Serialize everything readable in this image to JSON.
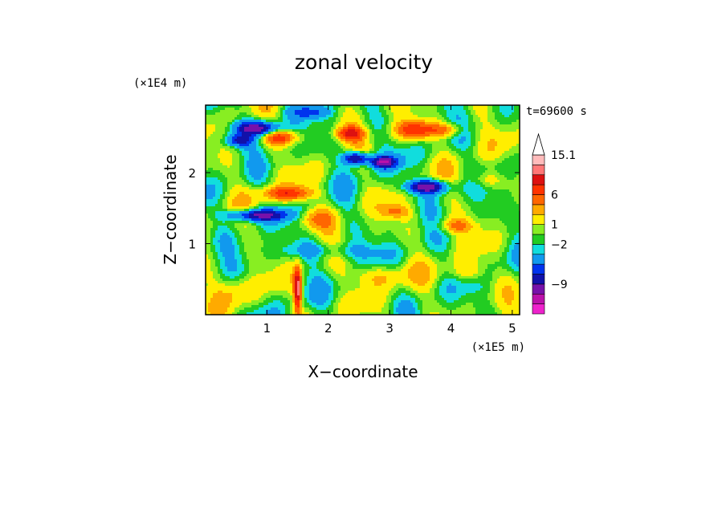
{
  "chart_data": {
    "type": "heatmap",
    "title": "zonal velocity",
    "xlabel": "X−coordinate",
    "ylabel": "Z−coordinate",
    "x_unit": "(×1E5 m)",
    "y_unit": "(×1E4 m)",
    "time_label": "t=69600 s",
    "x_range": [
      0,
      5.12
    ],
    "y_range": [
      0,
      2.95
    ],
    "x_ticks": [
      1,
      2,
      3,
      4,
      5
    ],
    "y_ticks": [
      1,
      2
    ],
    "x_tick_labels": [
      "1",
      "2",
      "3",
      "4",
      "5"
    ],
    "y_tick_labels": [
      "1",
      "2"
    ],
    "colorbar": {
      "colors": [
        "#ee22cc",
        "#bb11aa",
        "#7711aa",
        "#1111aa",
        "#0033ee",
        "#1199ee",
        "#11dddd",
        "#22cc22",
        "#88ee22",
        "#ffee00",
        "#ffaa00",
        "#ff6600",
        "#ff3300",
        "#dd1111",
        "#ff7777",
        "#ffbbbb"
      ],
      "labels": [
        {
          "index": 2,
          "text": "−9"
        },
        {
          "index": 6,
          "text": "−2"
        },
        {
          "index": 8,
          "text": "1"
        },
        {
          "index": 11,
          "text": "6"
        },
        {
          "index": 15,
          "text": "15.1"
        }
      ],
      "extend_max": true
    }
  }
}
